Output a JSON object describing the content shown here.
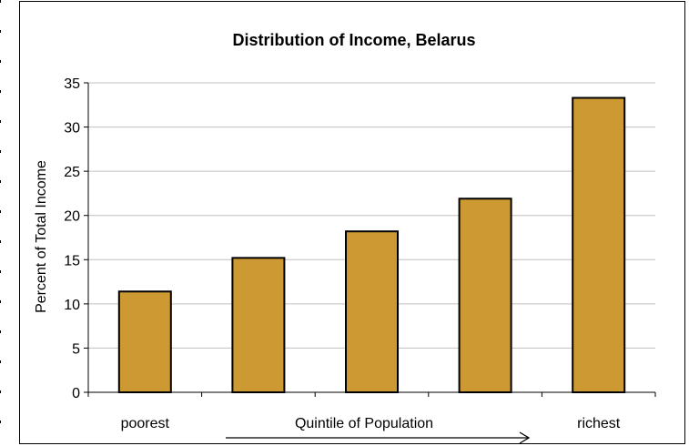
{
  "chart_data": {
    "type": "bar",
    "title": "Distribution of Income, Belarus",
    "ylabel": "Percent of Total Income",
    "xlabel": "Quintile of Population",
    "categories": [
      "poorest",
      "",
      "",
      "",
      "richest"
    ],
    "values": [
      11.4,
      15.2,
      18.2,
      21.9,
      33.3
    ],
    "ylim": [
      0,
      35
    ],
    "yticks": [
      "0",
      "5",
      "10",
      "15",
      "20",
      "25",
      "30",
      "35"
    ],
    "grid": true,
    "bar_color": "#CC9933",
    "grid_color": "#c0c0c0"
  }
}
